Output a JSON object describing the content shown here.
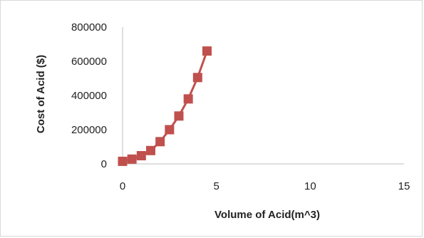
{
  "chart_data": {
    "type": "scatter",
    "title": "",
    "xlabel": "Volume of Acid(m^3)",
    "ylabel": "Cost of Acid ($)",
    "xlim": [
      0,
      15
    ],
    "ylim": [
      0,
      800000
    ],
    "xticks": [
      0,
      5,
      10,
      15
    ],
    "yticks": [
      0,
      200000,
      400000,
      600000,
      800000
    ],
    "xtick_labels": [
      "0",
      "5",
      "10",
      "15"
    ],
    "ytick_labels": [
      "0",
      "200000",
      "400000",
      "600000",
      "800000"
    ],
    "grid": false,
    "legend": "none",
    "series": [
      {
        "color": "#c0504d",
        "marker": "square",
        "line": true,
        "points": [
          {
            "x": 0,
            "y": 15000
          },
          {
            "x": 0.5,
            "y": 28000
          },
          {
            "x": 1,
            "y": 48000
          },
          {
            "x": 1.5,
            "y": 78000
          },
          {
            "x": 2,
            "y": 130000
          },
          {
            "x": 2.5,
            "y": 200000
          },
          {
            "x": 3,
            "y": 280000
          },
          {
            "x": 3.5,
            "y": 380000
          },
          {
            "x": 4,
            "y": 505000
          },
          {
            "x": 4.5,
            "y": 660000
          }
        ]
      }
    ]
  }
}
